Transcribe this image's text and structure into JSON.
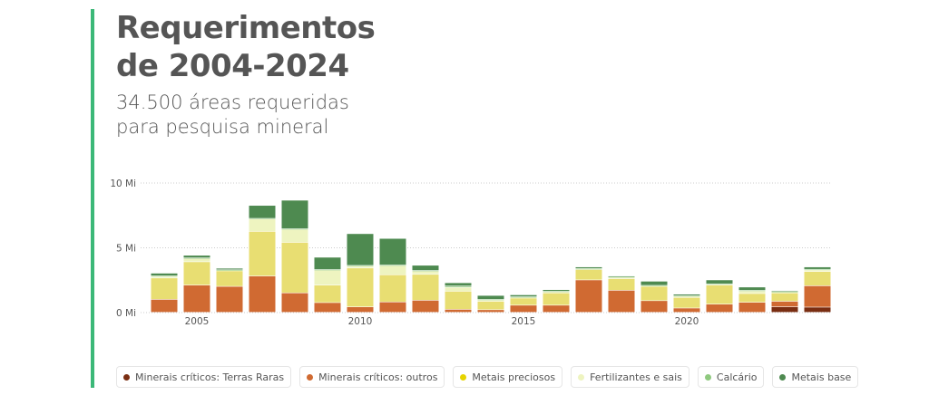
{
  "title": "Requerimentos de 2004-2024",
  "subtitle": "34.500 áreas requeridas para pesquisa mineral",
  "chart_data": {
    "type": "bar",
    "stacked": true,
    "ylabel": "",
    "xlabel": "",
    "ylim": [
      0,
      10
    ],
    "yticks": [
      {
        "v": 0,
        "label": "0 Mi"
      },
      {
        "v": 5,
        "label": "5 Mi"
      },
      {
        "v": 10,
        "label": "10 Mi"
      }
    ],
    "xticks": [
      {
        "v": 2005,
        "label": "2005"
      },
      {
        "v": 2010,
        "label": "2010"
      },
      {
        "v": 2015,
        "label": "2015"
      },
      {
        "v": 2020,
        "label": "2020"
      }
    ],
    "categories": [
      2004,
      2005,
      2006,
      2007,
      2008,
      2009,
      2010,
      2011,
      2012,
      2013,
      2014,
      2015,
      2016,
      2017,
      2018,
      2019,
      2020,
      2021,
      2022,
      2023,
      2024
    ],
    "series": [
      {
        "name": "Minerais críticos: Terras Raras",
        "color": "#7a2e12",
        "legend_color": "#7a2e12",
        "values": [
          0,
          0,
          0,
          0,
          0,
          0,
          0,
          0,
          0,
          0,
          0,
          0,
          0,
          0,
          0,
          0,
          0,
          0,
          0,
          0.42,
          0.4
        ]
      },
      {
        "name": "Minerais críticos: outros",
        "color": "#d06a32",
        "legend_color": "#d06a32",
        "values": [
          1.0,
          2.1,
          2.0,
          2.8,
          1.5,
          0.75,
          0.42,
          0.8,
          0.93,
          0.23,
          0.2,
          0.55,
          0.55,
          2.5,
          1.7,
          0.9,
          0.33,
          0.63,
          0.77,
          0.43,
          1.65
        ]
      },
      {
        "name": "Metais preciosos",
        "color": "#e8de72",
        "legend_color": "#e6d400",
        "values": [
          1.65,
          1.8,
          1.2,
          3.45,
          3.9,
          1.35,
          3.0,
          2.1,
          2.0,
          1.4,
          0.65,
          0.55,
          0.95,
          0.8,
          0.9,
          1.1,
          0.82,
          1.47,
          0.68,
          0.65,
          1.1
        ]
      },
      {
        "name": "Fertilizantes e sais",
        "color": "#eef4c0",
        "legend_color": "#eef4c0",
        "values": [
          0.12,
          0.25,
          0.05,
          0.95,
          1.0,
          1.15,
          0.15,
          0.7,
          0.25,
          0.3,
          0.1,
          0.05,
          0.1,
          0.05,
          0.1,
          0.05,
          0.1,
          0.07,
          0.2,
          0.08,
          0.12
        ]
      },
      {
        "name": "Calcário",
        "color": "#8fc97f",
        "legend_color": "#8fc97f",
        "values": [
          0.05,
          0.05,
          0.03,
          0.05,
          0.05,
          0.05,
          0.05,
          0.05,
          0.05,
          0.1,
          0.05,
          0.05,
          0.03,
          0.03,
          0.05,
          0.03,
          0.03,
          0.03,
          0.05,
          0.03,
          0.05
        ]
      },
      {
        "name": "Metais base",
        "color": "#4e8a50",
        "legend_color": "#4e8a50",
        "values": [
          0.2,
          0.2,
          0.12,
          1.0,
          2.2,
          0.95,
          2.45,
          2.05,
          0.4,
          0.25,
          0.3,
          0.15,
          0.12,
          0.12,
          0.05,
          0.32,
          0.12,
          0.3,
          0.25,
          0.07,
          0.18
        ]
      }
    ],
    "grid": true,
    "legend_position": "bottom"
  }
}
